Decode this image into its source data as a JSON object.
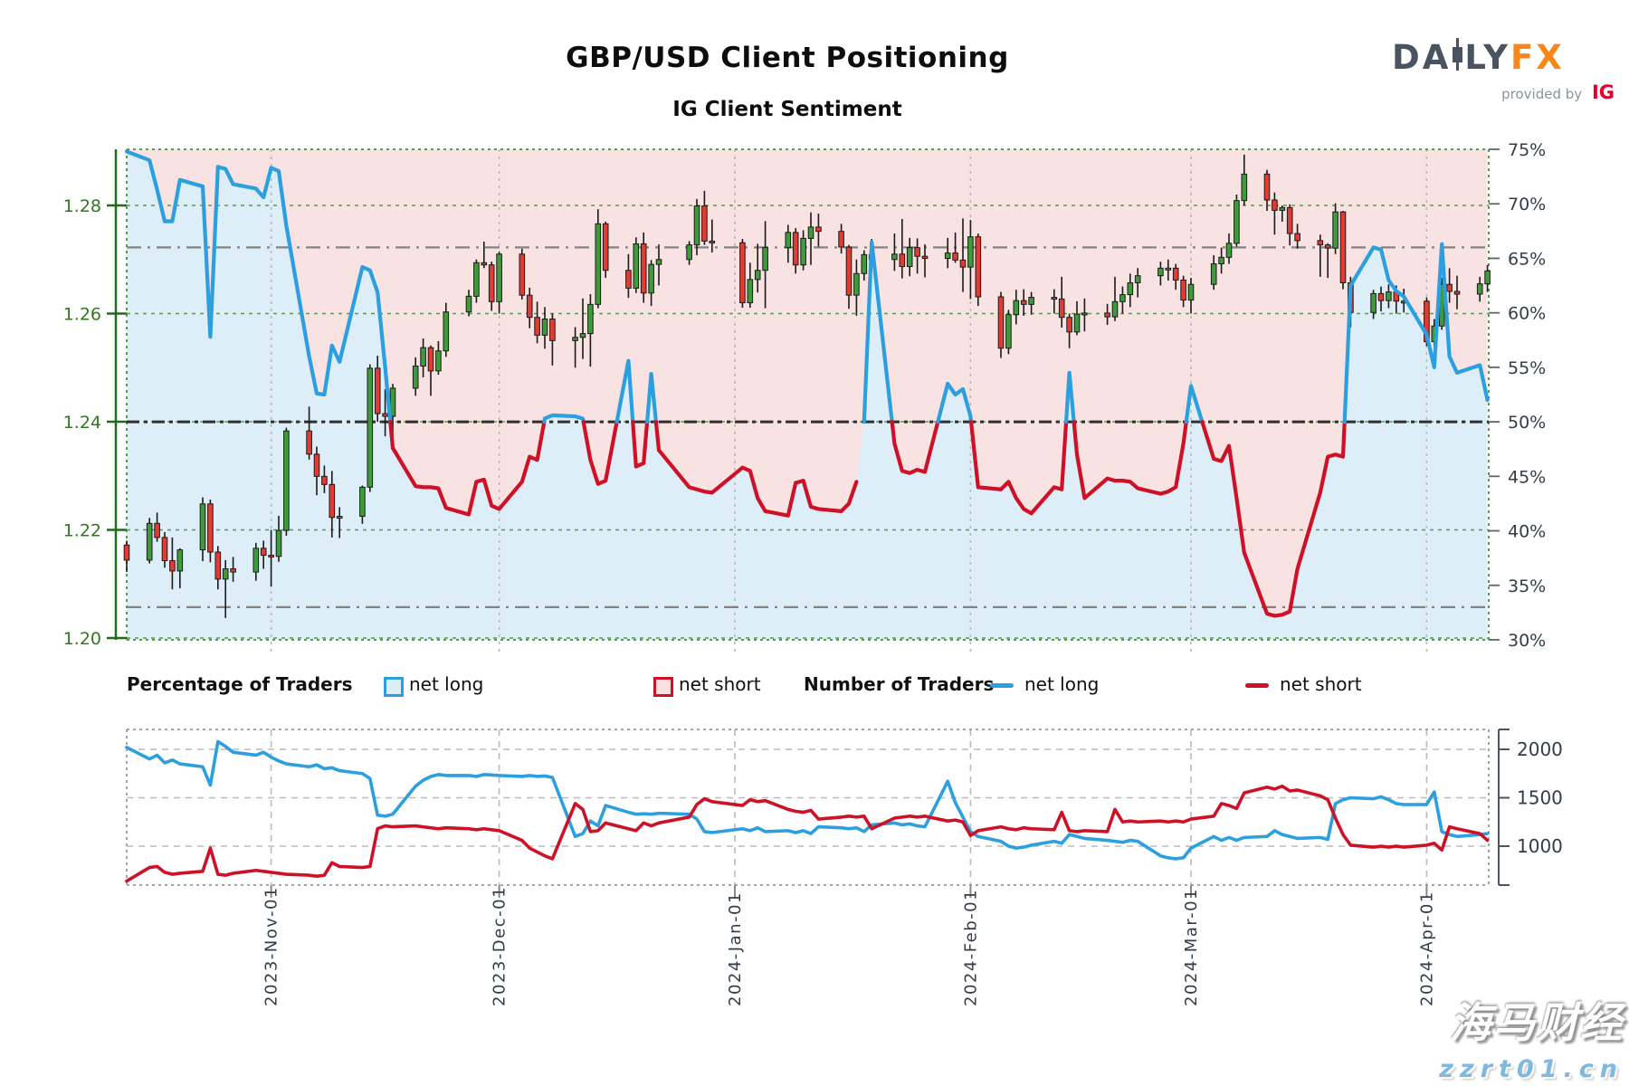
{
  "header": {
    "title": "GBP/USD Client Positioning",
    "subtitle": "IG Client Sentiment",
    "logo": {
      "part1": "DA",
      "part2": "LY",
      "part3": "FX",
      "provided_by": "provided by",
      "ig": "IG"
    }
  },
  "legend": {
    "pct_title": "Percentage of Traders",
    "pct_long_label": "net long",
    "pct_short_label": "net short",
    "num_title": "Number of Traders",
    "num_long_label": "net long",
    "num_short_label": "net short"
  },
  "watermark": {
    "line1": "海马财经",
    "line2": "zzrt01.cn"
  },
  "chart_data": {
    "type": "candlestick+line",
    "title": "GBP/USD Client Positioning",
    "subtitle": "IG Client Sentiment",
    "legend_position": "below-main-chart",
    "grid": true,
    "price_axis": {
      "side": "left",
      "ticks": [
        "1.28",
        "1.26",
        "1.24",
        "1.22",
        "1.20"
      ],
      "range": [
        1.197,
        1.2905
      ]
    },
    "pct_axis": {
      "side": "right",
      "ticks": [
        "75%",
        "70%",
        "65%",
        "60%",
        "55%",
        "50%",
        "45%",
        "40%",
        "35%",
        "30%"
      ],
      "range": [
        30,
        75
      ]
    },
    "count_axis": {
      "side": "right",
      "ticks": [
        "2000",
        "1500",
        "1000"
      ],
      "range": [
        600,
        2200
      ]
    },
    "reference_pct_lines": [
      66,
      50,
      33
    ],
    "months": [
      {
        "label": "2023-Nov-01",
        "c": 19
      },
      {
        "label": "2023-Dec-01",
        "c": 49
      },
      {
        "label": "2024-Jan-01",
        "c": 80
      },
      {
        "label": "2024-Feb-01",
        "c": 111
      },
      {
        "label": "2024-Mar-01",
        "c": 140
      },
      {
        "label": "2024-Apr-01",
        "c": 171
      }
    ],
    "colors": {
      "long_line": "#2b9fe0",
      "short_line": "#ce1126",
      "fill_above": "#f9e2e2",
      "fill_below": "#deeef8",
      "candle_up": "#3e9b3a",
      "candle_down": "#e33b32",
      "candle_stroke": "#1a1a1a",
      "price_axis": "#2f7a1f",
      "axis_green": "#1f6b1f",
      "grid_green": "#5a9a4c",
      "month_grid": "#b0bcb0",
      "ref_gray": "#828282",
      "ref_dark": "#2f2f2f",
      "slate_text": "#323d49",
      "count_grid": "#bbbbbb",
      "panel_border": "#999999"
    },
    "columns": [
      "calendar_day",
      "open",
      "high",
      "low",
      "close",
      "net_long_pct",
      "net_long_traders",
      "net_short_traders"
    ],
    "rows": [
      [
        0,
        1.2172,
        1.218,
        1.2122,
        1.2144,
        74.8,
        2020,
        640
      ],
      [
        3,
        1.2144,
        1.2222,
        1.2138,
        1.2212,
        74.0,
        1900,
        780
      ],
      [
        4,
        1.2212,
        1.2232,
        1.2178,
        1.2186,
        71.3,
        1940,
        790
      ],
      [
        5,
        1.2186,
        1.2196,
        1.213,
        1.2143,
        68.4,
        1860,
        730
      ],
      [
        6,
        1.2143,
        1.2186,
        1.209,
        1.2124,
        68.4,
        1890,
        710
      ],
      [
        7,
        1.2124,
        1.2166,
        1.2092,
        1.2163,
        72.2,
        1850,
        720
      ],
      [
        10,
        1.2163,
        1.226,
        1.2142,
        1.2248,
        71.6,
        1820,
        740
      ],
      [
        11,
        1.2248,
        1.2256,
        1.214,
        1.2159,
        57.8,
        1630,
        980
      ],
      [
        12,
        1.2159,
        1.217,
        1.209,
        1.2109,
        73.4,
        2080,
        710
      ],
      [
        13,
        1.2109,
        1.2144,
        1.2037,
        1.2128,
        73.2,
        2030,
        700
      ],
      [
        14,
        1.2128,
        1.215,
        1.2104,
        1.2122,
        71.8,
        1970,
        720
      ],
      [
        17,
        1.2122,
        1.2176,
        1.2106,
        1.2166,
        71.4,
        1940,
        750
      ],
      [
        18,
        1.2166,
        1.218,
        1.2128,
        1.2153,
        70.6,
        1970,
        740
      ],
      [
        19,
        1.2153,
        1.22,
        1.2095,
        1.2151,
        73.3,
        1920,
        730
      ],
      [
        20,
        1.2151,
        1.2226,
        1.2141,
        1.2199,
        73.0,
        1880,
        720
      ],
      [
        21,
        1.2199,
        1.2389,
        1.2189,
        1.2383,
        68.0,
        1850,
        710
      ],
      [
        24,
        1.2383,
        1.2428,
        1.233,
        1.234,
        56.0,
        1820,
        700
      ],
      [
        25,
        1.234,
        1.2354,
        1.2264,
        1.2299,
        52.6,
        1840,
        690
      ],
      [
        26,
        1.2299,
        1.2319,
        1.2268,
        1.2284,
        52.5,
        1800,
        700
      ],
      [
        27,
        1.2284,
        1.2309,
        1.2186,
        1.2223,
        57.0,
        1810,
        830
      ],
      [
        28,
        1.2223,
        1.2242,
        1.2185,
        1.2225,
        55.5,
        1780,
        790
      ],
      [
        31,
        1.2225,
        1.2282,
        1.2211,
        1.2279,
        64.2,
        1750,
        780
      ],
      [
        32,
        1.2279,
        1.2506,
        1.227,
        1.2499,
        63.9,
        1700,
        790
      ],
      [
        33,
        1.2499,
        1.2522,
        1.24,
        1.2415,
        61.9,
        1320,
        1180
      ],
      [
        34,
        1.2415,
        1.246,
        1.2373,
        1.241,
        55.0,
        1310,
        1210
      ],
      [
        35,
        1.241,
        1.247,
        1.2374,
        1.2462,
        47.6,
        1330,
        1200
      ],
      [
        38,
        1.2462,
        1.2519,
        1.2448,
        1.2503,
        44.1,
        1620,
        1210
      ],
      [
        39,
        1.2503,
        1.2554,
        1.2482,
        1.2537,
        44.0,
        1680,
        1200
      ],
      [
        40,
        1.2537,
        1.2541,
        1.2448,
        1.2494,
        44.0,
        1720,
        1190
      ],
      [
        41,
        1.2494,
        1.2549,
        1.2487,
        1.2531,
        43.9,
        1740,
        1180
      ],
      [
        42,
        1.2531,
        1.262,
        1.252,
        1.2603,
        42.1,
        1730,
        1190
      ],
      [
        45,
        1.2603,
        1.2644,
        1.2595,
        1.2632,
        41.5,
        1730,
        1180
      ],
      [
        46,
        1.2632,
        1.27,
        1.262,
        1.2694,
        44.5,
        1720,
        1170
      ],
      [
        47,
        1.2694,
        1.2733,
        1.2684,
        1.269,
        44.7,
        1740,
        1180
      ],
      [
        48,
        1.269,
        1.2696,
        1.2605,
        1.2622,
        42.3,
        1735,
        1170
      ],
      [
        49,
        1.2622,
        1.2714,
        1.26,
        1.271,
        42.0,
        1730,
        1160
      ],
      [
        52,
        1.271,
        1.272,
        1.2626,
        1.2634,
        44.5,
        1720,
        1060
      ],
      [
        53,
        1.2634,
        1.2648,
        1.2573,
        1.2593,
        46.8,
        1730,
        980
      ],
      [
        54,
        1.2593,
        1.2622,
        1.2545,
        1.256,
        46.5,
        1720,
        940
      ],
      [
        55,
        1.256,
        1.2612,
        1.2535,
        1.259,
        50.3,
        1725,
        900
      ],
      [
        56,
        1.259,
        1.26,
        1.2504,
        1.255,
        50.6,
        1710,
        870
      ],
      [
        59,
        1.255,
        1.2575,
        1.25,
        1.2556,
        50.5,
        1100,
        1440
      ],
      [
        60,
        1.2556,
        1.2628,
        1.2516,
        1.2563,
        50.3,
        1130,
        1380
      ],
      [
        61,
        1.2563,
        1.2636,
        1.2502,
        1.2617,
        46.5,
        1260,
        1150
      ],
      [
        62,
        1.2617,
        1.2793,
        1.261,
        1.2766,
        44.3,
        1210,
        1160
      ],
      [
        63,
        1.2766,
        1.277,
        1.2666,
        1.268,
        44.6,
        1420,
        1240
      ],
      [
        66,
        1.268,
        1.271,
        1.2629,
        1.2647,
        55.6,
        1350,
        1180
      ],
      [
        67,
        1.2647,
        1.2741,
        1.2638,
        1.2729,
        45.9,
        1330,
        1160
      ],
      [
        68,
        1.2729,
        1.275,
        1.262,
        1.2638,
        46.2,
        1335,
        1240
      ],
      [
        69,
        1.2638,
        1.2699,
        1.2614,
        1.2691,
        54.4,
        1330,
        1210
      ],
      [
        70,
        1.2691,
        1.2728,
        1.2652,
        1.27,
        47.4,
        1340,
        1240
      ],
      [
        74,
        1.27,
        1.2734,
        1.269,
        1.2727,
        44.0,
        1330,
        1300
      ],
      [
        75,
        1.2727,
        1.2812,
        1.2708,
        1.2799,
        43.8,
        1280,
        1430
      ],
      [
        76,
        1.2799,
        1.2827,
        1.2727,
        1.2734,
        43.6,
        1150,
        1490
      ],
      [
        77,
        1.2734,
        1.2774,
        1.2713,
        1.2731,
        43.5,
        1140,
        1460
      ],
      [
        81,
        1.2731,
        1.2738,
        1.2611,
        1.262,
        45.8,
        1180,
        1420
      ],
      [
        82,
        1.262,
        1.2694,
        1.2611,
        1.2663,
        45.5,
        1160,
        1480
      ],
      [
        83,
        1.2663,
        1.2729,
        1.2639,
        1.268,
        43.0,
        1190,
        1460
      ],
      [
        84,
        1.268,
        1.2771,
        1.261,
        1.2722,
        41.8,
        1150,
        1470
      ],
      [
        87,
        1.2722,
        1.2764,
        1.2694,
        1.275,
        41.4,
        1160,
        1380
      ],
      [
        88,
        1.275,
        1.2758,
        1.2674,
        1.269,
        44.4,
        1140,
        1360
      ],
      [
        89,
        1.269,
        1.2754,
        1.268,
        1.2739,
        44.6,
        1160,
        1350
      ],
      [
        90,
        1.2739,
        1.2787,
        1.269,
        1.276,
        42.2,
        1130,
        1370
      ],
      [
        91,
        1.276,
        1.2785,
        1.2724,
        1.2752,
        42.0,
        1200,
        1280
      ],
      [
        94,
        1.2752,
        1.2766,
        1.2711,
        1.2723,
        41.8,
        1190,
        1300
      ],
      [
        95,
        1.2723,
        1.2727,
        1.2609,
        1.2634,
        42.5,
        1180,
        1310
      ],
      [
        96,
        1.2634,
        1.27,
        1.2596,
        1.2674,
        44.5,
        1190,
        1300
      ],
      [
        97,
        1.2674,
        1.2717,
        1.2661,
        1.2709,
        50.0,
        1150,
        1310
      ],
      [
        98,
        1.2709,
        1.2738,
        1.2682,
        1.27,
        66.5,
        1220,
        1180
      ],
      [
        101,
        1.27,
        1.2748,
        1.2679,
        1.271,
        48.0,
        1240,
        1290
      ],
      [
        102,
        1.271,
        1.2775,
        1.2665,
        1.2687,
        45.5,
        1220,
        1300
      ],
      [
        103,
        1.2687,
        1.274,
        1.2669,
        1.2722,
        45.3,
        1230,
        1310
      ],
      [
        104,
        1.2722,
        1.2739,
        1.2674,
        1.2706,
        45.6,
        1210,
        1300
      ],
      [
        105,
        1.2706,
        1.2728,
        1.2667,
        1.2702,
        45.4,
        1200,
        1310
      ],
      [
        108,
        1.2702,
        1.274,
        1.2684,
        1.2712,
        53.5,
        1670,
        1260
      ],
      [
        109,
        1.2712,
        1.275,
        1.2694,
        1.2699,
        52.5,
        1450,
        1270
      ],
      [
        110,
        1.2699,
        1.2776,
        1.264,
        1.2686,
        53.0,
        1300,
        1250
      ],
      [
        111,
        1.2686,
        1.2773,
        1.2627,
        1.2742,
        50.5,
        1150,
        1110
      ],
      [
        112,
        1.2742,
        1.2748,
        1.2614,
        1.2631,
        44.0,
        1100,
        1160
      ],
      [
        115,
        1.2631,
        1.264,
        1.2518,
        1.2536,
        43.8,
        1050,
        1200
      ],
      [
        116,
        1.2536,
        1.2607,
        1.2525,
        1.2598,
        44.5,
        1000,
        1180
      ],
      [
        117,
        1.2598,
        1.2644,
        1.258,
        1.2624,
        43.0,
        980,
        1170
      ],
      [
        118,
        1.2624,
        1.2645,
        1.2596,
        1.2617,
        42.0,
        990,
        1190
      ],
      [
        119,
        1.2617,
        1.264,
        1.2598,
        1.263,
        41.6,
        1010,
        1180
      ],
      [
        122,
        1.263,
        1.2645,
        1.26,
        1.2627,
        44.0,
        1050,
        1170
      ],
      [
        123,
        1.2627,
        1.2668,
        1.2574,
        1.2593,
        43.8,
        1030,
        1350
      ],
      [
        124,
        1.2593,
        1.26,
        1.2536,
        1.2566,
        54.5,
        1120,
        1160
      ],
      [
        125,
        1.2566,
        1.2623,
        1.256,
        1.2599,
        47.0,
        1100,
        1150
      ],
      [
        126,
        1.2599,
        1.2628,
        1.2567,
        1.2601,
        43.0,
        1080,
        1160
      ],
      [
        129,
        1.2601,
        1.2618,
        1.2579,
        1.2594,
        44.8,
        1060,
        1150
      ],
      [
        130,
        1.2594,
        1.2668,
        1.2586,
        1.2622,
        44.6,
        1050,
        1380
      ],
      [
        131,
        1.2622,
        1.265,
        1.26,
        1.2635,
        44.6,
        1040,
        1250
      ],
      [
        132,
        1.2635,
        1.2674,
        1.2612,
        1.2657,
        44.5,
        1060,
        1260
      ],
      [
        133,
        1.2657,
        1.2684,
        1.263,
        1.267,
        43.9,
        1050,
        1250
      ],
      [
        136,
        1.267,
        1.2696,
        1.2652,
        1.2684,
        43.4,
        900,
        1260
      ],
      [
        137,
        1.2684,
        1.27,
        1.2661,
        1.2684,
        43.6,
        880,
        1250
      ],
      [
        138,
        1.2684,
        1.2692,
        1.2644,
        1.2662,
        44.0,
        870,
        1260
      ],
      [
        139,
        1.2662,
        1.267,
        1.2612,
        1.2625,
        48.0,
        880,
        1250
      ],
      [
        140,
        1.2625,
        1.2666,
        1.26,
        1.2654,
        53.3,
        980,
        1280
      ],
      [
        143,
        1.2654,
        1.2708,
        1.2644,
        1.2692,
        46.6,
        1100,
        1310
      ],
      [
        144,
        1.2692,
        1.2722,
        1.2674,
        1.2704,
        46.4,
        1060,
        1440
      ],
      [
        145,
        1.2704,
        1.2748,
        1.2692,
        1.273,
        47.8,
        1090,
        1420
      ],
      [
        146,
        1.273,
        1.282,
        1.2724,
        1.2809,
        43.0,
        1060,
        1390
      ],
      [
        147,
        1.2809,
        1.2894,
        1.28,
        1.2858,
        38.0,
        1090,
        1550
      ],
      [
        150,
        1.2858,
        1.2866,
        1.279,
        1.281,
        32.4,
        1100,
        1610
      ],
      [
        151,
        1.281,
        1.2824,
        1.2746,
        1.2791,
        32.2,
        1160,
        1590
      ],
      [
        152,
        1.2791,
        1.28,
        1.277,
        1.2796,
        32.3,
        1120,
        1620
      ],
      [
        153,
        1.2796,
        1.2802,
        1.2726,
        1.2748,
        32.6,
        1100,
        1570
      ],
      [
        154,
        1.2748,
        1.2766,
        1.272,
        1.2735,
        36.5,
        1080,
        1580
      ],
      [
        157,
        1.2735,
        1.2746,
        1.2668,
        1.2727,
        43.5,
        1090,
        1520
      ],
      [
        158,
        1.2727,
        1.273,
        1.2666,
        1.2721,
        46.8,
        1070,
        1480
      ],
      [
        159,
        1.2721,
        1.2804,
        1.271,
        1.2788,
        47.0,
        1440,
        1290
      ],
      [
        160,
        1.2788,
        1.279,
        1.2645,
        1.2657,
        46.8,
        1480,
        1120
      ],
      [
        161,
        1.2657,
        1.2668,
        1.2575,
        1.2602,
        62.5,
        1500,
        1010
      ],
      [
        164,
        1.2602,
        1.2644,
        1.259,
        1.2637,
        66.0,
        1490,
        990
      ],
      [
        165,
        1.2637,
        1.265,
        1.2604,
        1.2624,
        65.8,
        1510,
        1000
      ],
      [
        166,
        1.2624,
        1.2654,
        1.261,
        1.264,
        63.0,
        1480,
        990
      ],
      [
        167,
        1.264,
        1.2652,
        1.26,
        1.2623,
        62.0,
        1440,
        1000
      ],
      [
        168,
        1.2623,
        1.2646,
        1.2602,
        1.2623,
        61.5,
        1430,
        990
      ],
      [
        171,
        1.2623,
        1.263,
        1.254,
        1.2548,
        58.0,
        1430,
        1010
      ],
      [
        172,
        1.2548,
        1.259,
        1.2536,
        1.2577,
        55.0,
        1560,
        1030
      ],
      [
        173,
        1.2577,
        1.2666,
        1.257,
        1.2654,
        66.3,
        1150,
        960
      ],
      [
        174,
        1.2654,
        1.2684,
        1.262,
        1.2641,
        56.0,
        1120,
        1200
      ],
      [
        175,
        1.2641,
        1.267,
        1.2608,
        1.2636,
        54.5,
        1100,
        1180
      ],
      [
        178,
        1.2636,
        1.2668,
        1.2622,
        1.2655,
        55.2,
        1120,
        1130
      ],
      [
        179,
        1.2655,
        1.269,
        1.264,
        1.2679,
        52.0,
        1130,
        1060
      ]
    ]
  }
}
